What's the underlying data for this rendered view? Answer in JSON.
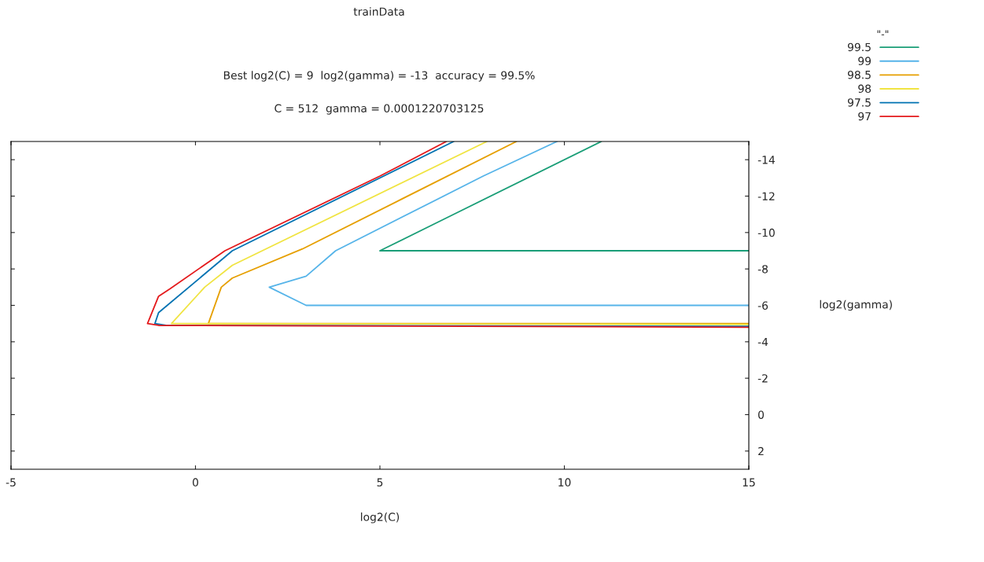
{
  "chart_data": {
    "type": "line",
    "title": "trainData",
    "subtitle": "Best log2(C) = 9  log2(gamma) = -13  accuracy = 99.5%",
    "annotations": [
      "C = 512  gamma = 0.0001220703125"
    ],
    "xlabel": "log2(C)",
    "ylabel": "log2(gamma)",
    "legend_title": "\"-\"",
    "legend": "top right",
    "xlim": [
      -5,
      15
    ],
    "ylim": [
      3,
      -15
    ],
    "xticks": [
      -5,
      0,
      5,
      10,
      15
    ],
    "yticks": [
      -14,
      -12,
      -10,
      -8,
      -6,
      -4,
      -2,
      0,
      2
    ],
    "grid": false,
    "marker": "none",
    "line_style": "solid",
    "series": [
      {
        "name": "99.5",
        "color": "#1a9e77",
        "x": [
          11.0,
          6.9,
          5.0,
          15
        ],
        "values": [
          -15,
          -10.9,
          -9.0,
          -9.0
        ]
      },
      {
        "name": "99",
        "color": "#56b4e9",
        "x": [
          9.8,
          7.8,
          3.8,
          3.0,
          2.0,
          3.0,
          15
        ],
        "values": [
          -15,
          -13.1,
          -9.0,
          -7.6,
          -7.0,
          -6.0,
          -6.0
        ]
      },
      {
        "name": "98.5",
        "color": "#e69f00",
        "x": [
          8.7,
          2.9,
          1.0,
          0.7,
          0.35,
          15
        ],
        "values": [
          -15,
          -9.1,
          -7.5,
          -7.0,
          -5.0,
          -5.0
        ]
      },
      {
        "name": "98",
        "color": "#f0e442",
        "x": [
          7.9,
          1.0,
          0.25,
          -0.65,
          15
        ],
        "values": [
          -15,
          -8.2,
          -7.0,
          -5.0,
          -4.95
        ]
      },
      {
        "name": "97.5",
        "color": "#0072b2",
        "x": [
          7.0,
          1.0,
          -1.0,
          -1.1,
          -0.8,
          15
        ],
        "values": [
          -15,
          -9.0,
          -5.6,
          -5.0,
          -4.9,
          -4.85
        ]
      },
      {
        "name": "97",
        "color": "#e41a1c",
        "x": [
          6.8,
          5.0,
          0.8,
          -0.7,
          -1.0,
          -1.3,
          -1.0,
          15
        ],
        "values": [
          -15,
          -13.1,
          -9.0,
          -6.9,
          -6.5,
          -5.0,
          -4.9,
          -4.8
        ]
      }
    ]
  }
}
